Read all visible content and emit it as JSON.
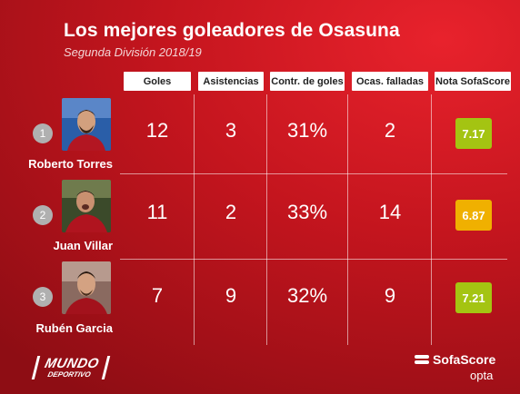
{
  "title": "Los mejores goleadores de Osasuna",
  "subtitle": "Segunda División 2018/19",
  "columns": [
    "Goles",
    "Asistencias",
    "Contr. de goles",
    "Ocas. falladas",
    "Nota SofaScore"
  ],
  "players": [
    {
      "rank": "1",
      "name": "Roberto Torres",
      "goals": "12",
      "assists": "3",
      "goal_contribution": "31%",
      "missed_chances": "2",
      "rating": "7.17",
      "rating_color": "#a4c412"
    },
    {
      "rank": "2",
      "name": "Juan Villar",
      "goals": "11",
      "assists": "2",
      "goal_contribution": "33%",
      "missed_chances": "14",
      "rating": "6.87",
      "rating_color": "#f0b000"
    },
    {
      "rank": "3",
      "name": "Rubén Garcia",
      "goals": "7",
      "assists": "9",
      "goal_contribution": "32%",
      "missed_chances": "9",
      "rating": "7.21",
      "rating_color": "#a4c412"
    }
  ],
  "logos": {
    "mundo_line1": "MUNDO",
    "mundo_line2": "DEPORTIVO",
    "sofascore": "SofaScore",
    "opta": "opta"
  },
  "icons": {
    "player_photo": "player-photo",
    "sofascore_mark": "sofascore-logo-icon"
  }
}
